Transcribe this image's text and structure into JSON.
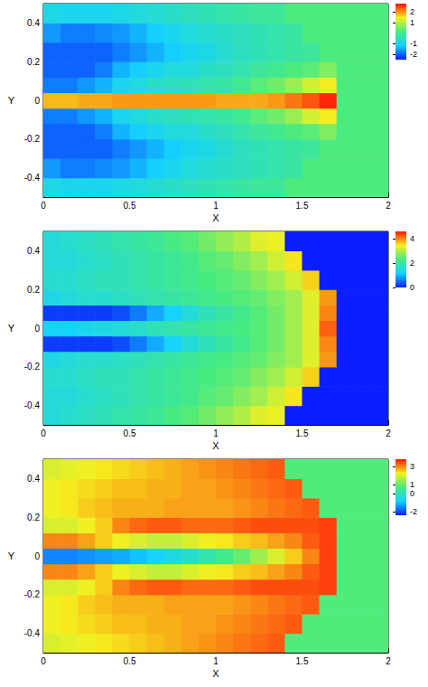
{
  "chart_data": [
    {
      "type": "heatmap",
      "x_label": "X",
      "y_label": "Y",
      "xlim": [
        0,
        2
      ],
      "ylim": [
        -0.5,
        0.5
      ],
      "xticks": [
        0,
        0.5,
        1,
        1.5,
        2
      ],
      "yticks": [
        -0.4,
        -0.2,
        0,
        0.2,
        0.4
      ],
      "x_edges": [
        0,
        0.1,
        0.2,
        0.3,
        0.4,
        0.5,
        0.6,
        0.7,
        0.8,
        0.9,
        1,
        1.1,
        1.2,
        1.3,
        1.4,
        1.5,
        1.6,
        1.7,
        1.8,
        1.9,
        2
      ],
      "y_edges": [
        -0.5,
        -0.4,
        -0.3,
        -0.2,
        -0.12,
        -0.04,
        0.04,
        0.12,
        0.2,
        0.3,
        0.4,
        0.5
      ],
      "cells": [
        [
          -0.9,
          -1.0,
          -1.0,
          -1.0,
          -0.9,
          -0.8,
          -0.7,
          -0.6,
          -0.5,
          -0.4,
          -0.3,
          -0.2,
          -0.1,
          -0.1,
          0.2,
          0.2,
          0.2,
          0.2,
          0.2,
          0.2
        ],
        [
          -1.6,
          -1.8,
          -1.8,
          -1.7,
          -1.6,
          -1.4,
          -1.2,
          -1.0,
          -0.8,
          -0.7,
          -0.6,
          -0.5,
          -0.4,
          -0.3,
          -0.2,
          0.2,
          0.2,
          0.2,
          0.2,
          0.2
        ],
        [
          -2.0,
          -2.0,
          -2.0,
          -2.0,
          -1.8,
          -1.6,
          -1.4,
          -1.2,
          -1.0,
          -0.9,
          -0.7,
          -0.5,
          -0.4,
          -0.3,
          -0.2,
          -0.1,
          0.2,
          0.2,
          0.2,
          0.2
        ],
        [
          -2.0,
          -2.0,
          -2.0,
          -1.8,
          -1.4,
          -1.2,
          -1.0,
          -0.8,
          -0.8,
          -0.6,
          -0.5,
          -0.3,
          -0.1,
          0.0,
          0.2,
          0.3,
          0.6,
          0.2,
          0.2,
          0.2
        ],
        [
          -1.8,
          -1.8,
          -1.6,
          -1.4,
          -1.0,
          -0.8,
          -0.6,
          -0.5,
          -0.4,
          -0.3,
          -0.2,
          0.0,
          0.3,
          0.5,
          0.8,
          1.2,
          1.5,
          0.2,
          0.2,
          0.2
        ],
        [
          1.8,
          1.8,
          1.9,
          1.9,
          2.0,
          2.0,
          2.0,
          2.0,
          2.0,
          2.0,
          1.9,
          1.9,
          1.9,
          2.0,
          2.2,
          2.4,
          2.7,
          0.2,
          0.2,
          0.2
        ],
        [
          -1.8,
          -1.8,
          -1.6,
          -1.4,
          -1.0,
          -0.8,
          -0.6,
          -0.5,
          -0.4,
          -0.3,
          -0.2,
          0.0,
          0.3,
          0.5,
          0.8,
          1.2,
          1.5,
          0.2,
          0.2,
          0.2
        ],
        [
          -2.0,
          -2.0,
          -2.0,
          -1.8,
          -1.4,
          -1.2,
          -1.0,
          -0.8,
          -0.8,
          -0.6,
          -0.5,
          -0.3,
          -0.1,
          0.0,
          0.2,
          0.3,
          0.6,
          0.2,
          0.2,
          0.2
        ],
        [
          -2.0,
          -2.0,
          -2.0,
          -2.0,
          -1.8,
          -1.6,
          -1.4,
          -1.2,
          -1.0,
          -0.9,
          -0.7,
          -0.5,
          -0.4,
          -0.3,
          -0.2,
          -0.1,
          0.2,
          0.2,
          0.2,
          0.2
        ],
        [
          -1.6,
          -1.8,
          -1.8,
          -1.7,
          -1.6,
          -1.4,
          -1.2,
          -1.0,
          -0.8,
          -0.7,
          -0.6,
          -0.5,
          -0.4,
          -0.3,
          -0.2,
          0.2,
          0.2,
          0.2,
          0.2,
          0.2
        ],
        [
          -0.9,
          -1.0,
          -1.0,
          -1.0,
          -0.9,
          -0.8,
          -0.7,
          -0.6,
          -0.5,
          -0.4,
          -0.3,
          -0.2,
          -0.1,
          -0.1,
          0.2,
          0.2,
          0.2,
          0.2,
          0.2,
          0.2
        ]
      ],
      "colorbar": {
        "range": [
          -2.5,
          2.8
        ],
        "ticks": [
          -2,
          -1,
          1,
          2
        ]
      }
    },
    {
      "type": "heatmap",
      "x_label": "X",
      "y_label": "Y",
      "xlim": [
        0,
        2
      ],
      "ylim": [
        -0.5,
        0.5
      ],
      "xticks": [
        0,
        0.5,
        1,
        1.5,
        2
      ],
      "yticks": [
        -0.4,
        -0.2,
        0,
        0.2,
        0.4
      ],
      "x_edges": [
        0,
        0.1,
        0.2,
        0.3,
        0.4,
        0.5,
        0.6,
        0.7,
        0.8,
        0.9,
        1,
        1.1,
        1.2,
        1.3,
        1.4,
        1.5,
        1.6,
        1.7,
        1.8,
        1.9,
        2
      ],
      "y_edges": [
        -0.5,
        -0.4,
        -0.3,
        -0.2,
        -0.12,
        -0.04,
        0.04,
        0.12,
        0.2,
        0.3,
        0.4,
        0.5
      ],
      "cells": [
        [
          1.5,
          1.6,
          1.7,
          1.8,
          1.9,
          2.0,
          2.1,
          2.3,
          2.4,
          2.6,
          2.8,
          3.0,
          3.3,
          3.4,
          0,
          0,
          0,
          0,
          0,
          0
        ],
        [
          1.5,
          1.5,
          1.6,
          1.7,
          1.8,
          1.9,
          2.0,
          2.1,
          2.2,
          2.4,
          2.5,
          2.7,
          2.9,
          3.2,
          3.5,
          0,
          0,
          0,
          0,
          0
        ],
        [
          1.6,
          1.6,
          1.7,
          1.8,
          1.8,
          1.9,
          2.0,
          2.1,
          2.2,
          2.3,
          2.4,
          2.5,
          2.7,
          2.9,
          3.2,
          3.6,
          0,
          0,
          0,
          0
        ],
        [
          1.4,
          1.5,
          1.6,
          1.6,
          1.7,
          1.8,
          1.9,
          2.0,
          2.1,
          2.2,
          2.3,
          2.4,
          2.5,
          2.7,
          2.9,
          3.3,
          3.9,
          0,
          0,
          0
        ],
        [
          0.2,
          0.2,
          0.2,
          0.2,
          0.3,
          0.6,
          0.9,
          1.2,
          1.5,
          1.8,
          2.0,
          2.2,
          2.4,
          2.6,
          2.9,
          3.3,
          4.0,
          0,
          0,
          0
        ],
        [
          1.2,
          1.2,
          1.3,
          1.4,
          1.5,
          1.6,
          1.8,
          1.9,
          2.0,
          2.1,
          2.2,
          2.3,
          2.4,
          2.6,
          2.9,
          3.3,
          4.2,
          0,
          0,
          0
        ],
        [
          0.2,
          0.2,
          0.2,
          0.2,
          0.3,
          0.6,
          0.9,
          1.2,
          1.5,
          1.8,
          2.0,
          2.2,
          2.4,
          2.6,
          2.9,
          3.3,
          4.0,
          0,
          0,
          0
        ],
        [
          1.4,
          1.5,
          1.6,
          1.6,
          1.7,
          1.8,
          1.9,
          2.0,
          2.1,
          2.2,
          2.3,
          2.4,
          2.5,
          2.7,
          2.9,
          3.3,
          3.9,
          0,
          0,
          0
        ],
        [
          1.6,
          1.6,
          1.7,
          1.8,
          1.8,
          1.9,
          2.0,
          2.1,
          2.2,
          2.3,
          2.4,
          2.5,
          2.7,
          2.9,
          3.2,
          3.6,
          0,
          0,
          0,
          0
        ],
        [
          1.5,
          1.5,
          1.6,
          1.7,
          1.8,
          1.9,
          2.0,
          2.1,
          2.2,
          2.4,
          2.5,
          2.7,
          2.9,
          3.2,
          3.5,
          0,
          0,
          0,
          0,
          0
        ],
        [
          1.5,
          1.6,
          1.7,
          1.8,
          1.9,
          2.0,
          2.1,
          2.3,
          2.4,
          2.6,
          2.8,
          3.0,
          3.3,
          3.4,
          0,
          0,
          0,
          0,
          0,
          0
        ]
      ],
      "colorbar": {
        "range": [
          0,
          4.6
        ],
        "ticks": [
          0,
          2,
          4
        ]
      }
    },
    {
      "type": "heatmap",
      "x_label": "X",
      "y_label": "Y",
      "xlim": [
        0,
        2
      ],
      "ylim": [
        -0.5,
        0.5
      ],
      "xticks": [
        0,
        0.5,
        1,
        1.5,
        2
      ],
      "yticks": [
        -0.4,
        -0.2,
        0,
        0.2,
        0.4
      ],
      "x_edges": [
        0,
        0.1,
        0.2,
        0.3,
        0.4,
        0.5,
        0.6,
        0.7,
        0.8,
        0.9,
        1,
        1.1,
        1.2,
        1.3,
        1.4,
        1.5,
        1.6,
        1.7,
        1.8,
        1.9,
        2
      ],
      "y_edges": [
        -0.5,
        -0.4,
        -0.3,
        -0.2,
        -0.12,
        -0.04,
        0.04,
        0.12,
        0.2,
        0.3,
        0.4,
        0.5
      ],
      "cells": [
        [
          2.0,
          2.1,
          2.2,
          2.3,
          2.4,
          2.5,
          2.6,
          2.7,
          2.8,
          2.9,
          3.0,
          3.1,
          3.2,
          3.3,
          0.8,
          0.8,
          0.8,
          0.8,
          0.8,
          0.8
        ],
        [
          2.2,
          2.3,
          2.4,
          2.5,
          2.6,
          2.6,
          2.7,
          2.7,
          2.8,
          2.8,
          2.9,
          3.0,
          3.1,
          3.2,
          3.3,
          0.8,
          0.8,
          0.8,
          0.8,
          0.8
        ],
        [
          2.2,
          2.3,
          2.5,
          2.6,
          2.7,
          2.7,
          2.7,
          2.8,
          2.8,
          2.8,
          2.8,
          2.9,
          3.0,
          3.1,
          3.2,
          3.3,
          0.8,
          0.8,
          0.8,
          0.8
        ],
        [
          2.0,
          2.0,
          2.2,
          2.5,
          3.0,
          3.2,
          3.3,
          3.3,
          3.2,
          3.2,
          3.2,
          3.3,
          3.4,
          3.4,
          3.4,
          3.4,
          3.5,
          0.8,
          0.8,
          0.8
        ],
        [
          3.0,
          3.0,
          2.8,
          2.5,
          2.2,
          2.0,
          1.8,
          1.8,
          2.0,
          2.2,
          2.3,
          2.5,
          2.6,
          2.8,
          3.0,
          3.3,
          3.5,
          0.8,
          0.8,
          0.8
        ],
        [
          -1.5,
          -1.5,
          -1.4,
          -1.3,
          -1.2,
          -1.0,
          -0.8,
          -0.5,
          -0.2,
          0.2,
          0.6,
          1.0,
          1.5,
          2.0,
          2.5,
          3.0,
          3.5,
          0.8,
          0.8,
          0.8
        ],
        [
          3.0,
          3.0,
          2.8,
          2.5,
          2.2,
          2.0,
          1.8,
          1.8,
          2.0,
          2.2,
          2.3,
          2.5,
          2.6,
          2.8,
          3.0,
          3.3,
          3.5,
          0.8,
          0.8,
          0.8
        ],
        [
          2.0,
          2.0,
          2.2,
          2.5,
          3.0,
          3.2,
          3.3,
          3.3,
          3.2,
          3.2,
          3.2,
          3.3,
          3.4,
          3.4,
          3.4,
          3.4,
          3.5,
          0.8,
          0.8,
          0.8
        ],
        [
          2.2,
          2.3,
          2.5,
          2.6,
          2.7,
          2.7,
          2.7,
          2.8,
          2.8,
          2.8,
          2.8,
          2.9,
          3.0,
          3.1,
          3.2,
          3.3,
          0.8,
          0.8,
          0.8,
          0.8
        ],
        [
          2.2,
          2.3,
          2.4,
          2.5,
          2.6,
          2.6,
          2.7,
          2.7,
          2.8,
          2.8,
          2.9,
          3.0,
          3.1,
          3.2,
          3.3,
          0.8,
          0.8,
          0.8,
          0.8,
          0.8
        ],
        [
          2.0,
          2.1,
          2.2,
          2.3,
          2.4,
          2.5,
          2.6,
          2.7,
          2.8,
          2.9,
          3.0,
          3.1,
          3.2,
          3.3,
          0.8,
          0.8,
          0.8,
          0.8,
          0.8,
          0.8
        ]
      ],
      "colorbar": {
        "range": [
          -2.4,
          3.8
        ],
        "ticks": [
          -2,
          0,
          1,
          3
        ]
      }
    }
  ]
}
